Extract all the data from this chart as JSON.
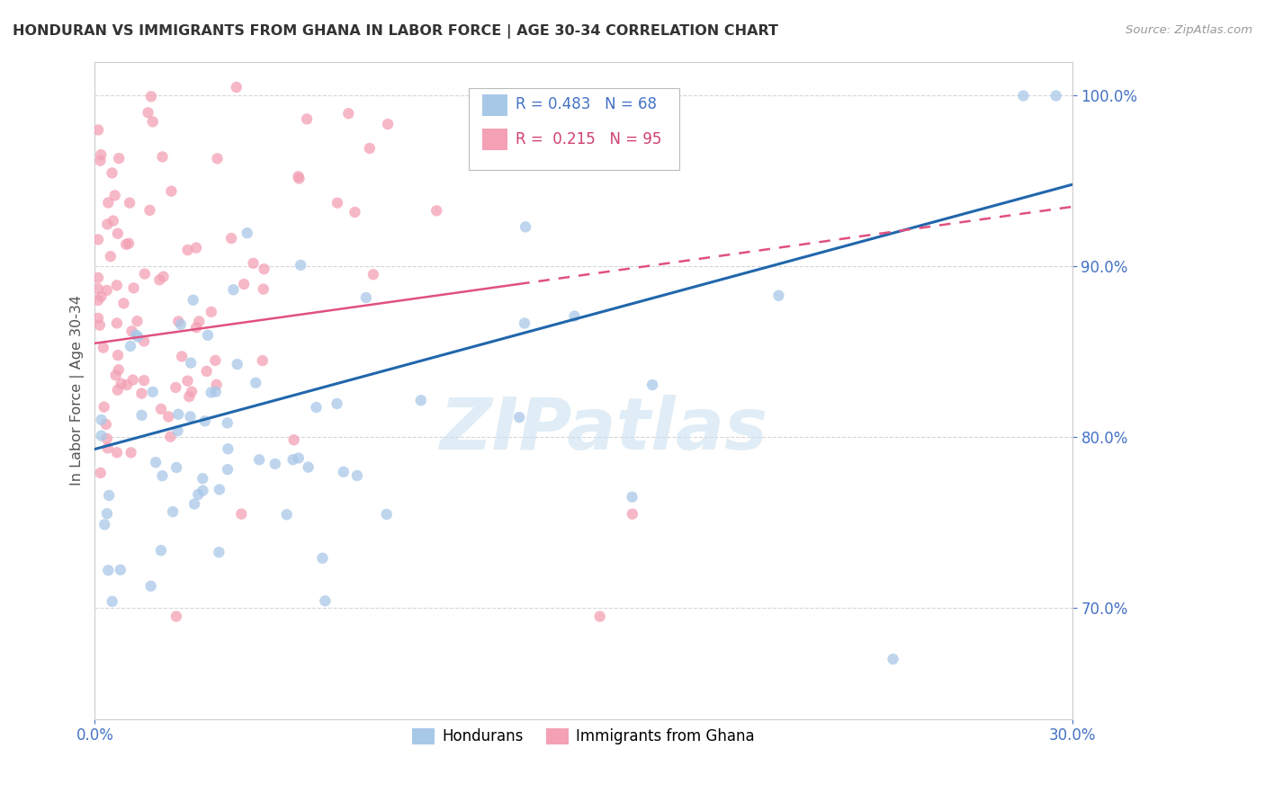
{
  "title": "HONDURAN VS IMMIGRANTS FROM GHANA IN LABOR FORCE | AGE 30-34 CORRELATION CHART",
  "source": "Source: ZipAtlas.com",
  "ylabel": "In Labor Force | Age 30-34",
  "x_min": 0.0,
  "x_max": 0.3,
  "y_min": 0.635,
  "y_max": 1.02,
  "y_ticks": [
    0.7,
    0.8,
    0.9,
    1.0
  ],
  "x_ticks": [
    0.0,
    0.3
  ],
  "blue_color": "#a8c8e8",
  "pink_color": "#f4a0b5",
  "blue_line_color": "#2166ac",
  "pink_line_color": "#e05080",
  "axis_label_color": "#4472C4",
  "tick_color": "#4472C4",
  "watermark": "ZIPatlas",
  "legend_blue_r": "R = 0.483",
  "legend_blue_n": "N = 68",
  "legend_pink_r": "R =  0.215",
  "legend_pink_n": "N = 95",
  "legend_label_blue": "Hondurans",
  "legend_label_pink": "Immigrants from Ghana"
}
